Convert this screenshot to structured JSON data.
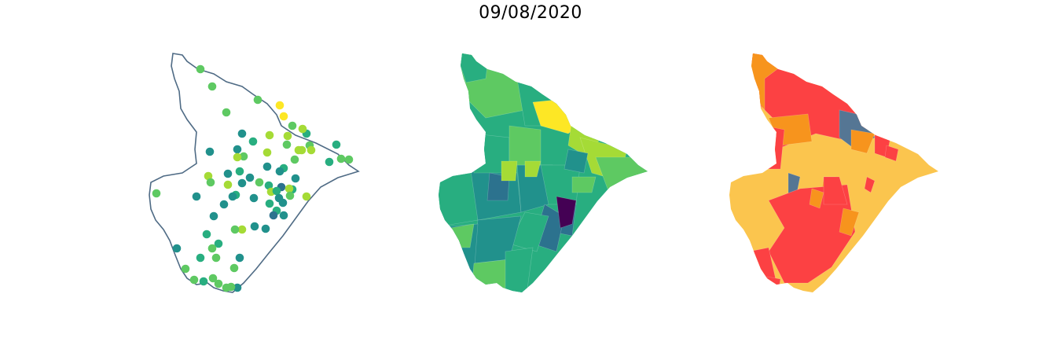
{
  "title": "09/08/2020",
  "colors": {
    "outline": "#4f6b85",
    "viridis": [
      "#440154",
      "#2c728e",
      "#21918c",
      "#28ae80",
      "#5ec962",
      "#a5db36",
      "#fde725"
    ],
    "categories": [
      "#fbc54e",
      "#fc4143",
      "#f7941d",
      "#557694"
    ]
  }
}
